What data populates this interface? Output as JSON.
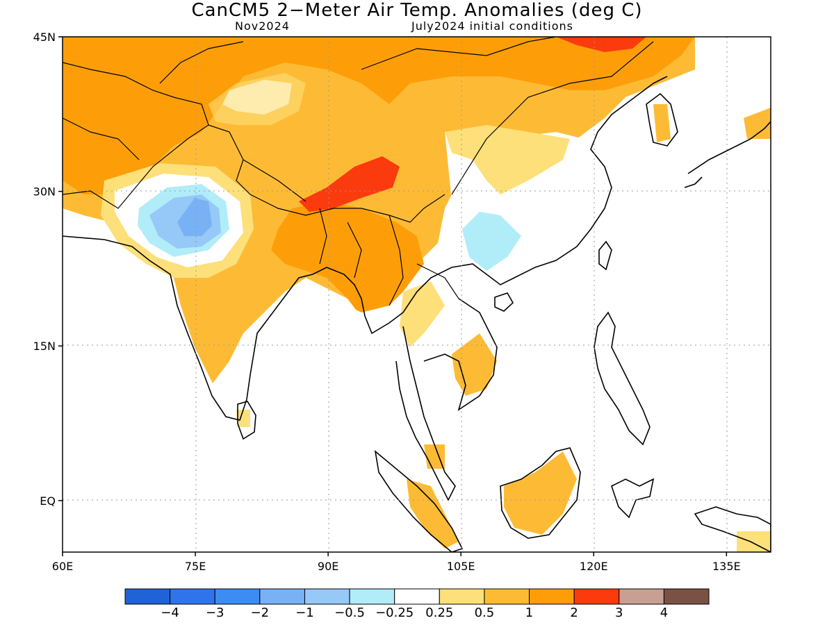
{
  "title": "CanCM5 2−Meter Air Temp. Anomalies (deg C)",
  "subtitle_left": "Nov2024",
  "subtitle_right": "July2024 initial conditions",
  "map": {
    "lon_range": [
      60,
      140
    ],
    "lat_range": [
      -5,
      45
    ],
    "lat_ticks": [
      {
        "value": 45,
        "label": "45N"
      },
      {
        "value": 30,
        "label": "30N"
      },
      {
        "value": 15,
        "label": "15N"
      },
      {
        "value": 0,
        "label": "EQ"
      }
    ],
    "lon_ticks": [
      {
        "value": 60,
        "label": "60E"
      },
      {
        "value": 75,
        "label": "75E"
      },
      {
        "value": 90,
        "label": "90E"
      },
      {
        "value": 105,
        "label": "105E"
      },
      {
        "value": 120,
        "label": "120E"
      },
      {
        "value": 135,
        "label": "135E"
      }
    ],
    "grid": true
  },
  "colorbar": {
    "colors": [
      "#1f63d6",
      "#2f74ea",
      "#3d8cf2",
      "#78b2f5",
      "#96c8f8",
      "#b1ecf9",
      "#ffffff",
      "#fde07a",
      "#fdbb35",
      "#fd9e08",
      "#fb3a0e",
      "#c8a091",
      "#7a5244"
    ],
    "labels": [
      "−4",
      "−3",
      "−2",
      "−1",
      "−0.5",
      "−0.25",
      "0.25",
      "0.5",
      "1",
      "2",
      "3",
      "4"
    ]
  }
}
